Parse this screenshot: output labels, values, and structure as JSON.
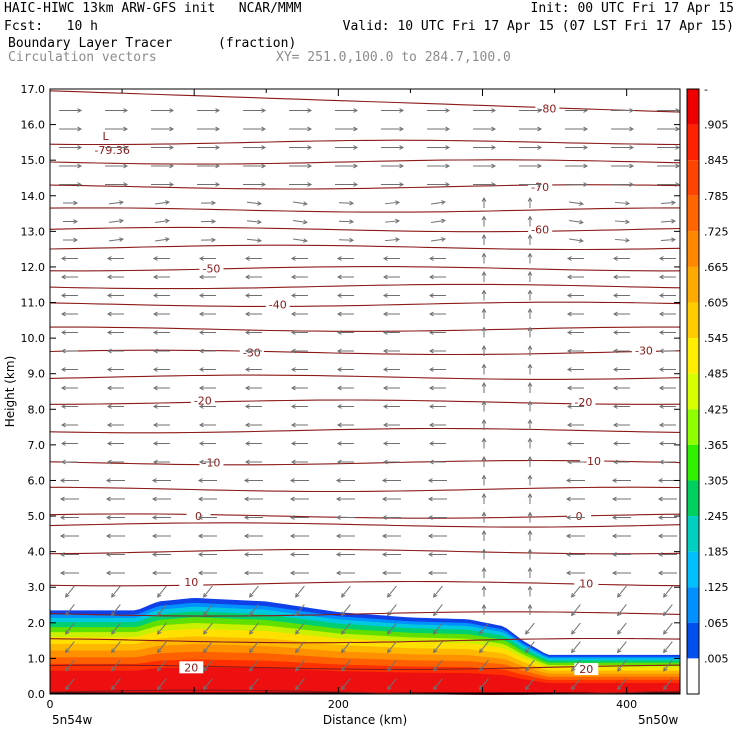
{
  "header": {
    "title_left": "HAIC-HIWC 13km ARW-GFS init   NCAR/MMM",
    "init": "Init: 00 UTC Fri 17 Apr 15",
    "fcst": "Fcst:   10 h",
    "valid": "Valid: 10 UTC Fri 17 Apr 15 (07 LST Fri 17 Apr 15)",
    "field": "Boundary Layer Tracer",
    "units": "(fraction)",
    "vectors": "Circulation vectors",
    "xy": "XY= 251.0,100.0 to 284.7,100.0"
  },
  "chart_data": {
    "type": "cross-section",
    "xlabel": "Distance (km)",
    "ylabel": "Height (km)",
    "xlim": [
      0,
      437
    ],
    "ylim": [
      0,
      17
    ],
    "x_ticks": [
      "0",
      "200",
      "400"
    ],
    "x_tick_values": [
      0,
      200,
      400
    ],
    "y_ticks": [
      "0.0",
      "1.0",
      "2.0",
      "3.0",
      "4.0",
      "5.0",
      "6.0",
      "7.0",
      "8.0",
      "9.0",
      "10.0",
      "11.0",
      "12.0",
      "13.0",
      "14.0",
      "15.0",
      "16.0",
      "17.0"
    ],
    "x_end_labels": {
      "left": "5n54w",
      "right": "5n50w"
    },
    "colorbar": {
      "labels": [
        "-",
        ".905",
        ".845",
        ".785",
        ".725",
        ".665",
        ".605",
        ".545",
        ".485",
        ".425",
        ".365",
        ".305",
        ".245",
        ".185",
        ".125",
        ".065",
        ".005"
      ],
      "colors": [
        "#ee0000",
        "#ff2200",
        "#ff4400",
        "#ff6600",
        "#ff8800",
        "#ffaa00",
        "#ffcc00",
        "#ffee00",
        "#d8ff00",
        "#90ff00",
        "#30f000",
        "#00d060",
        "#00d0c0",
        "#00c0ff",
        "#0090ff",
        "#0050f0",
        "#ffffff"
      ]
    },
    "tracer_top_km": {
      "x": [
        0,
        60,
        75,
        100,
        150,
        200,
        250,
        290,
        315,
        328,
        345,
        437
      ],
      "top": [
        2.35,
        2.35,
        2.6,
        2.7,
        2.6,
        2.3,
        2.15,
        2.1,
        1.9,
        1.5,
        1.1,
        1.1
      ]
    },
    "temperature_contours": [
      {
        "label": "-80",
        "label_x": 345,
        "label_y": 16.45
      },
      {
        "label": "-70",
        "label_x": 340,
        "label_y": 14.25
      },
      {
        "label": "-60",
        "label_x": 340,
        "label_y": 13.05
      },
      {
        "label": "-50",
        "label_x": 112,
        "label_y": 11.95
      },
      {
        "label": "-40",
        "label_x": 158,
        "label_y": 10.95
      },
      {
        "label": "-30",
        "label_x": 140,
        "label_y": 9.6
      },
      {
        "label": "-30",
        "label_x": 412,
        "label_y": 9.65
      },
      {
        "label": "-20",
        "label_x": 106,
        "label_y": 8.25
      },
      {
        "label": "-20",
        "label_x": 370,
        "label_y": 8.2
      },
      {
        "label": "-10",
        "label_x": 112,
        "label_y": 6.5
      },
      {
        "label": "-10",
        "label_x": 376,
        "label_y": 6.55
      },
      {
        "label": "0",
        "label_x": 103,
        "label_y": 5.0
      },
      {
        "label": "0",
        "label_x": 367,
        "label_y": 5.0
      },
      {
        "label": "10",
        "label_x": 98,
        "label_y": 3.15
      },
      {
        "label": "10",
        "label_x": 372,
        "label_y": 3.1
      },
      {
        "label": "20",
        "label_x": 98,
        "label_y": 0.75
      },
      {
        "label": "20",
        "label_x": 372,
        "label_y": 0.7
      }
    ],
    "low_marker": {
      "symbol": "L",
      "value": "-79.36",
      "x": 35,
      "y": 15.4
    },
    "contour_levels_km": [
      0.05,
      0.75,
      1.5,
      2.25,
      3.1,
      4.0,
      4.75,
      5.0,
      5.75,
      6.5,
      7.4,
      8.2,
      8.9,
      9.6,
      10.25,
      10.95,
      11.45,
      11.95,
      12.55,
      13.05,
      13.6,
      14.25,
      14.95,
      15.5,
      16.45
    ]
  }
}
